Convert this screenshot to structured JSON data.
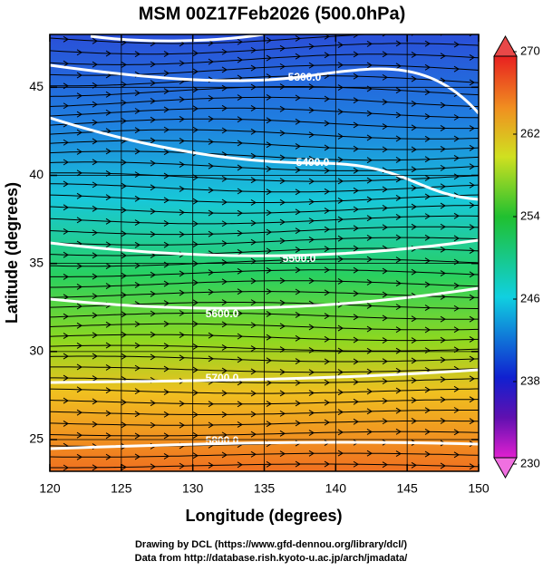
{
  "map": {
    "title": "MSM 00Z17Feb2026 (500.0hPa)",
    "x_label": "Longitude (degrees)",
    "y_label": "Latitude  (degrees)",
    "xlim": [
      120,
      150
    ],
    "ylim": [
      23.2,
      48
    ],
    "xticks": [
      120,
      125,
      130,
      135,
      140,
      145,
      150
    ],
    "yticks": [
      25,
      30,
      35,
      40,
      45
    ],
    "colorbar": {
      "lim": [
        230,
        270
      ],
      "ticks": [
        230,
        238,
        246,
        254,
        262,
        270
      ]
    },
    "contour_labels": [
      "5300.0",
      "5400.0",
      "5500.0",
      "5600.0",
      "5700.0",
      "5800.0"
    ],
    "footer": [
      "Drawing by DCL (https://www.gfd-dennou.org/library/dcl/)",
      "Data from http://database.rish.kyoto-u.ac.jp/arch/jmadata/"
    ]
  }
}
